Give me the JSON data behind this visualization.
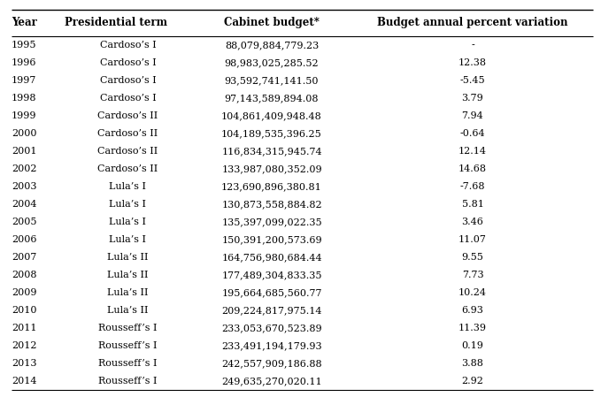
{
  "headers": [
    "Year",
    "Presidential term",
    "Cabinet budget*",
    "Budget annual percent variation"
  ],
  "rows": [
    [
      "1995",
      "Cardoso’s I",
      "88,079,884,779.23",
      "-"
    ],
    [
      "1996",
      "Cardoso’s I",
      "98,983,025,285.52",
      "12.38"
    ],
    [
      "1997",
      "Cardoso’s I",
      "93,592,741,141.50",
      "-5.45"
    ],
    [
      "1998",
      "Cardoso’s I",
      "97,143,589,894.08",
      "3.79"
    ],
    [
      "1999",
      "Cardoso’s II",
      "104,861,409,948.48",
      "7.94"
    ],
    [
      "2000",
      "Cardoso’s II",
      "104,189,535,396.25",
      "-0.64"
    ],
    [
      "2001",
      "Cardoso’s II",
      "116,834,315,945.74",
      "12.14"
    ],
    [
      "2002",
      "Cardoso’s II",
      "133,987,080,352.09",
      "14.68"
    ],
    [
      "2003",
      "Lula’s I",
      "123,690,896,380.81",
      "-7.68"
    ],
    [
      "2004",
      "Lula’s I",
      "130,873,558,884.82",
      "5.81"
    ],
    [
      "2005",
      "Lula’s I",
      "135,397,099,022.35",
      "3.46"
    ],
    [
      "2006",
      "Lula’s I",
      "150,391,200,573.69",
      "11.07"
    ],
    [
      "2007",
      "Lula’s II",
      "164,756,980,684.44",
      "9.55"
    ],
    [
      "2008",
      "Lula’s II",
      "177,489,304,833.35",
      "7.73"
    ],
    [
      "2009",
      "Lula’s II",
      "195,664,685,560.77",
      "10.24"
    ],
    [
      "2010",
      "Lula’s II",
      "209,224,817,975.14",
      "6.93"
    ],
    [
      "2011",
      "Rousseff’s I",
      "233,053,670,523.89",
      "11.39"
    ],
    [
      "2012",
      "Rousseff’s I",
      "233,491,194,179.93",
      "0.19"
    ],
    [
      "2013",
      "Rousseff’s I",
      "242,557,909,186.88",
      "3.88"
    ],
    [
      "2014",
      "Rousseff’s I",
      "249,635,270,020.11",
      "2.92"
    ]
  ],
  "header_fontsize": 8.5,
  "row_fontsize": 8.0,
  "background_color": "#ffffff",
  "line_color": "#000000",
  "fig_width": 6.79,
  "fig_height": 4.49,
  "dpi": 100
}
